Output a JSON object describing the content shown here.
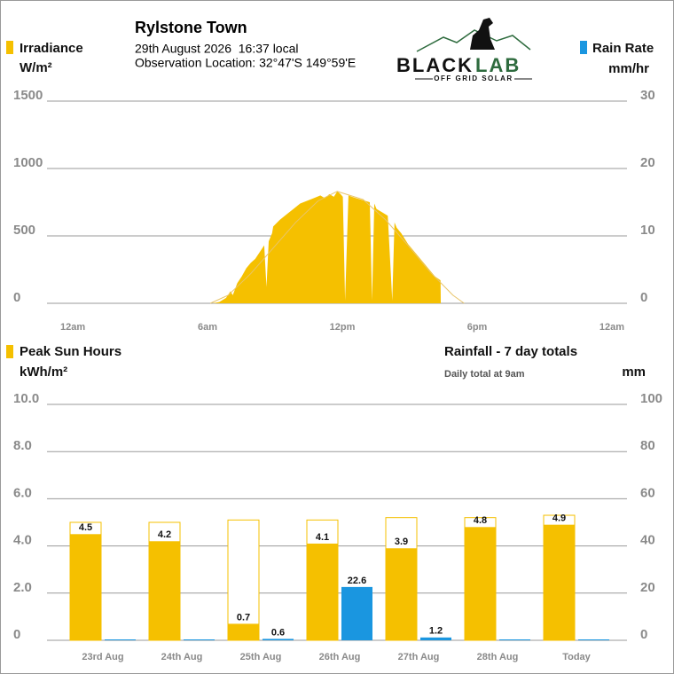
{
  "header": {
    "title": "Rylstone Town",
    "date": "29th August 2026  16:37 local",
    "location": "Observation Location: 32°47'S 149°59'E",
    "logo_left": "BLACK",
    "logo_right": "LAB",
    "logo_sub": "OFF GRID SOLAR"
  },
  "chart_data": [
    {
      "type": "area",
      "y_label": "Irradiance",
      "y_unit": "W/m²",
      "y2_label": "Rain Rate",
      "y2_unit": "mm/hr",
      "color": "#f5c000",
      "y2_color": "#1a96e0",
      "series": [
        {
          "name": "Irradiance",
          "color": "#f5c000",
          "style": "fill",
          "x": [
            6.3,
            6.6,
            6.9,
            7.1,
            7.2,
            7.4,
            7.6,
            7.8,
            8.0,
            8.2,
            8.4,
            8.6,
            8.7,
            8.8,
            8.95,
            9.0,
            9.3,
            9.6,
            9.9,
            10.2,
            10.5,
            10.8,
            11.1,
            11.3,
            11.5,
            11.7,
            11.85,
            12.0,
            12.1,
            12.2,
            12.35,
            12.5,
            12.7,
            12.9,
            13.1,
            13.3,
            13.4,
            13.5,
            13.6,
            13.8,
            14.1,
            14.3,
            14.4,
            14.5,
            14.7,
            15.0,
            15.3,
            15.6,
            15.9,
            16.2,
            16.45,
            16.46
          ],
          "values": [
            0,
            10,
            40,
            90,
            60,
            150,
            200,
            260,
            300,
            330,
            380,
            430,
            120,
            460,
            520,
            570,
            620,
            660,
            700,
            740,
            760,
            780,
            800,
            780,
            810,
            790,
            830,
            810,
            790,
            20,
            800,
            790,
            780,
            770,
            760,
            750,
            20,
            740,
            700,
            680,
            650,
            20,
            600,
            560,
            520,
            440,
            380,
            320,
            260,
            200,
            170,
            0
          ]
        },
        {
          "color": "#e8c46a",
          "style": "line",
          "x": [
            6.2,
            7.0,
            8.0,
            9.0,
            10.0,
            11.0,
            11.85,
            13.0,
            14.0,
            15.0,
            16.0,
            17.0,
            17.5
          ],
          "values": [
            0,
            60,
            220,
            410,
            600,
            760,
            830,
            770,
            620,
            430,
            230,
            60,
            0
          ]
        }
      ],
      "xlim": [
        -1.07,
        24.75
      ],
      "xticks": [
        {
          "value": 0,
          "label": "12am"
        },
        {
          "value": 6,
          "label": "6am"
        },
        {
          "value": 12,
          "label": "12pm"
        },
        {
          "value": 18,
          "label": "6pm"
        },
        {
          "value": 24,
          "label": "12am"
        }
      ],
      "ylim": [
        0,
        1500
      ],
      "yticks": [
        0,
        500,
        1000,
        1500
      ],
      "y2lim": [
        0,
        30
      ],
      "y2ticks": [
        0,
        10,
        20,
        30
      ],
      "grid": true
    },
    {
      "type": "bar",
      "y_label": "Peak Sun Hours",
      "y_unit": "kWh/m²",
      "title": "Rainfall - 7 day totals",
      "subtitle": "Daily total at 9am",
      "y2_unit": "mm",
      "categories": [
        "23rd Aug",
        "24th Aug",
        "25th Aug",
        "26th Aug",
        "27th Aug",
        "28th Aug",
        "Today"
      ],
      "series": [
        {
          "color": "#f5c000",
          "style": "outline",
          "values": [
            5.0,
            5.0,
            5.1,
            5.1,
            5.2,
            5.2,
            5.3
          ]
        },
        {
          "name": "Peak Sun Hours",
          "color": "#f5c000",
          "style": "fill",
          "values": [
            4.5,
            4.2,
            0.7,
            4.1,
            3.9,
            4.8,
            4.9
          ]
        },
        {
          "color": "#1a96e0",
          "style": "fill",
          "axis": "y2",
          "values": [
            0,
            0,
            0.6,
            22.6,
            1.2,
            0,
            0
          ],
          "value_labels": [
            null,
            null,
            "0.6",
            "22.6",
            "1.2",
            null,
            null
          ]
        }
      ],
      "ylim": [
        0,
        10
      ],
      "yticks": [
        0,
        {
          "value": 2,
          "label": "2.0"
        },
        {
          "value": 4,
          "label": "4.0"
        },
        {
          "value": 6,
          "label": "6.0"
        },
        {
          "value": 8,
          "label": "8.0"
        },
        {
          "value": 10,
          "label": "10.0"
        }
      ],
      "y2lim": [
        0,
        100
      ],
      "y2ticks": [
        0,
        20,
        40,
        60,
        80,
        100
      ],
      "grid": true
    }
  ]
}
